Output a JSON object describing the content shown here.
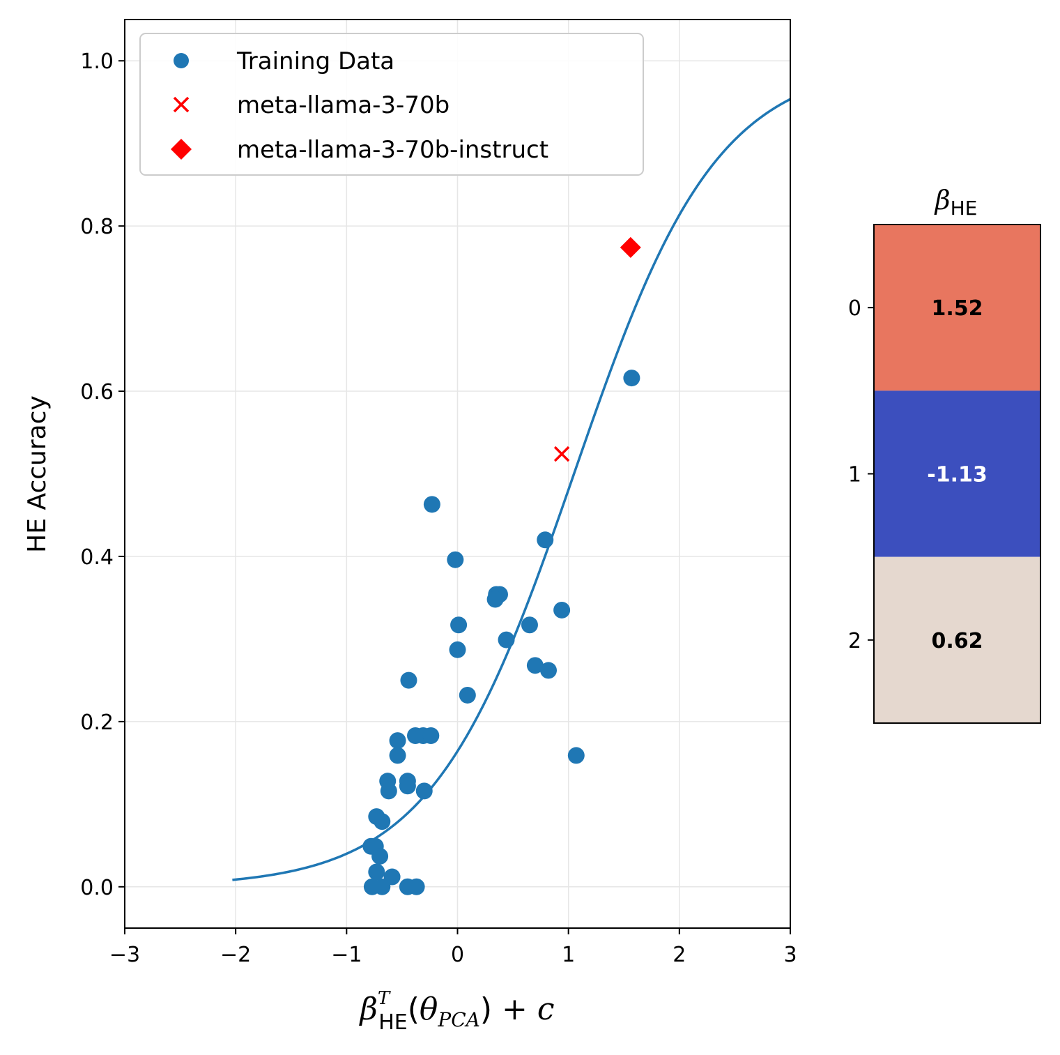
{
  "chart_data": [
    {
      "type": "scatter",
      "ylabel": "HE Accuracy",
      "xlabel": {
        "beta": "β",
        "superscript": "T",
        "subscript": "HE",
        "open": "(",
        "theta": "θ",
        "theta_subscript": "PCA",
        "close": ")",
        "plus_c": " + c"
      },
      "xlim": [
        -3,
        3
      ],
      "ylim": [
        -0.05,
        1.05
      ],
      "xticks": [
        -3,
        -2,
        -1,
        0,
        1,
        2,
        3
      ],
      "xtick_labels": [
        "−3",
        "−2",
        "−1",
        "0",
        "1",
        "2",
        "3"
      ],
      "yticks": [
        0.0,
        0.2,
        0.4,
        0.6,
        0.8,
        1.0
      ],
      "ytick_labels": [
        "0.0",
        "0.2",
        "0.4",
        "0.6",
        "0.8",
        "1.0"
      ],
      "grid": true,
      "legend_position": "upper-left",
      "series": [
        {
          "name": "Training Data",
          "marker": "circle",
          "color": "#1f77b4",
          "points": [
            [
              1.57,
              0.616
            ],
            [
              -0.23,
              0.463
            ],
            [
              -0.02,
              0.396
            ],
            [
              0.79,
              0.42
            ],
            [
              0.35,
              0.354
            ],
            [
              0.38,
              0.354
            ],
            [
              0.34,
              0.348
            ],
            [
              0.94,
              0.335
            ],
            [
              0.01,
              0.317
            ],
            [
              0.65,
              0.317
            ],
            [
              0.44,
              0.299
            ],
            [
              0.0,
              0.287
            ],
            [
              0.7,
              0.268
            ],
            [
              0.82,
              0.262
            ],
            [
              -0.44,
              0.25
            ],
            [
              0.09,
              0.232
            ],
            [
              -0.54,
              0.177
            ],
            [
              -0.38,
              0.183
            ],
            [
              -0.31,
              0.183
            ],
            [
              -0.24,
              0.183
            ],
            [
              -0.54,
              0.159
            ],
            [
              1.07,
              0.159
            ],
            [
              -0.63,
              0.128
            ],
            [
              -0.45,
              0.128
            ],
            [
              -0.45,
              0.122
            ],
            [
              -0.62,
              0.116
            ],
            [
              -0.3,
              0.116
            ],
            [
              -0.73,
              0.085
            ],
            [
              -0.68,
              0.079
            ],
            [
              -0.78,
              0.049
            ],
            [
              -0.74,
              0.049
            ],
            [
              -0.7,
              0.037
            ],
            [
              -0.73,
              0.018
            ],
            [
              -0.59,
              0.012
            ],
            [
              -0.77,
              0.0
            ],
            [
              -0.68,
              0.0
            ],
            [
              -0.45,
              0.0
            ],
            [
              -0.37,
              0.0
            ]
          ]
        },
        {
          "name": "meta-llama-3-70b",
          "marker": "x",
          "color": "#ff0000",
          "points": [
            [
              0.94,
              0.524
            ]
          ]
        },
        {
          "name": "meta-llama-3-70b-instruct",
          "marker": "diamond",
          "color": "#ff0000",
          "points": [
            [
              1.56,
              0.774
            ]
          ]
        }
      ],
      "fit_curve": {
        "name": "sigmoid fit",
        "color": "#1f77b4",
        "x_range": [
          -2.03,
          3.0
        ],
        "function": "1/(1+exp(-1.55*(x-1.05)))"
      }
    },
    {
      "type": "heatmap",
      "title": {
        "beta": "β",
        "subscript": "HE"
      },
      "rows": [
        "0",
        "1",
        "2"
      ],
      "values": [
        1.52,
        -1.13,
        0.62
      ],
      "value_labels": [
        "1.52",
        "-1.13",
        "0.62"
      ],
      "cell_colors": [
        "#e8765f",
        "#3c4fbe",
        "#e5d8cf"
      ],
      "label_colors": [
        "#000000",
        "#ffffff",
        "#000000"
      ]
    }
  ]
}
